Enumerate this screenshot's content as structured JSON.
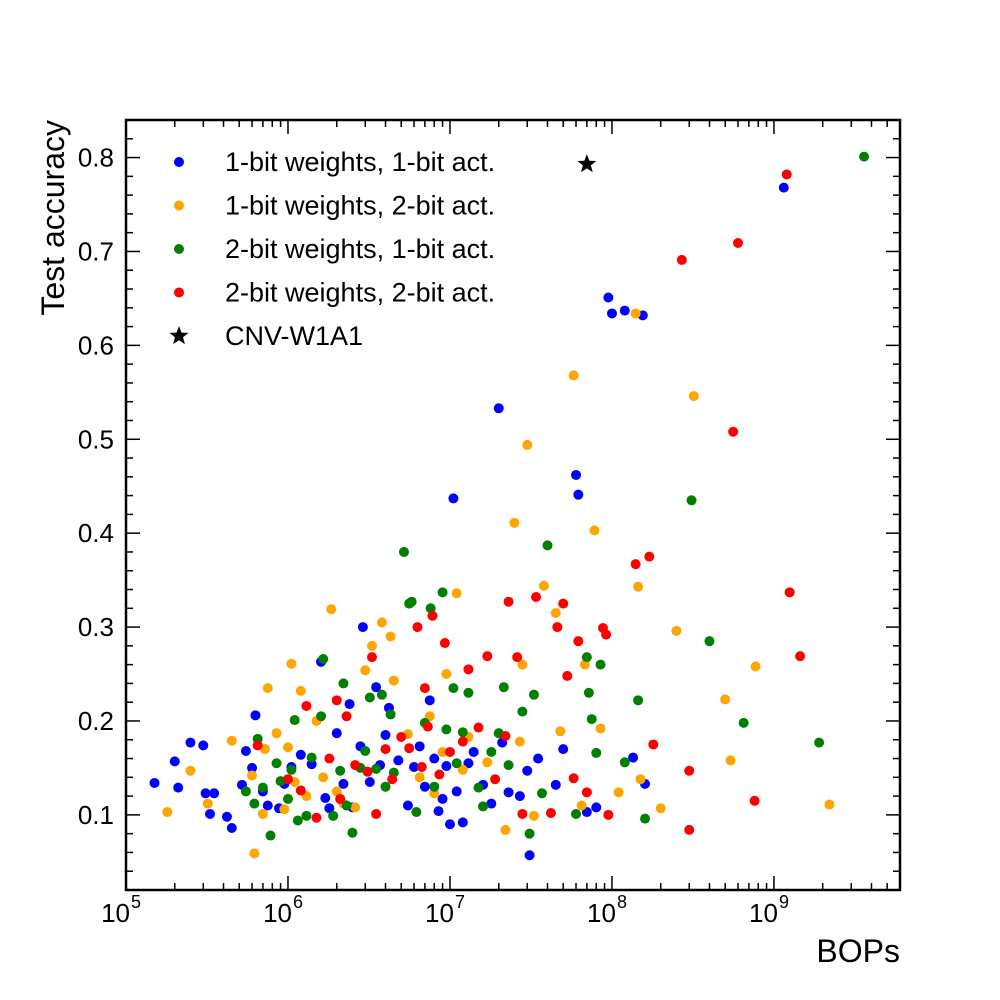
{
  "chart_data": {
    "type": "scatter",
    "title": "",
    "xlabel": "BOPs",
    "ylabel": "Test accuracy",
    "xscale": "log",
    "xlim": [
      100000,
      6000000000
    ],
    "ylim": [
      0.02,
      0.84
    ],
    "x_tick_labels": [
      {
        "value": 100000,
        "base": "10",
        "exp": "5"
      },
      {
        "value": 1000000,
        "base": "10",
        "exp": "6"
      },
      {
        "value": 10000000,
        "base": "10",
        "exp": "7"
      },
      {
        "value": 100000000,
        "base": "10",
        "exp": "8"
      },
      {
        "value": 1000000000,
        "base": "10",
        "exp": "9"
      }
    ],
    "y_tick_labels": [
      "0.1",
      "0.2",
      "0.3",
      "0.4",
      "0.5",
      "0.6",
      "0.7",
      "0.8"
    ],
    "y_tick_values": [
      0.1,
      0.2,
      0.3,
      0.4,
      0.5,
      0.6,
      0.7,
      0.8
    ],
    "grid": false,
    "legend_position": "top-left",
    "series": [
      {
        "name": "1-bit weights, 1-bit act.",
        "color": "#0000ff",
        "marker": "circle",
        "points": [
          [
            150000,
            0.134
          ],
          [
            200000,
            0.157
          ],
          [
            210000,
            0.129
          ],
          [
            250000,
            0.177
          ],
          [
            300000,
            0.174
          ],
          [
            310000,
            0.123
          ],
          [
            330000,
            0.101
          ],
          [
            350000,
            0.123
          ],
          [
            420000,
            0.098
          ],
          [
            450000,
            0.086
          ],
          [
            520000,
            0.132
          ],
          [
            550000,
            0.168
          ],
          [
            600000,
            0.15
          ],
          [
            630000,
            0.206
          ],
          [
            700000,
            0.125
          ],
          [
            750000,
            0.11
          ],
          [
            880000,
            0.107
          ],
          [
            950000,
            0.133
          ],
          [
            1050000,
            0.151
          ],
          [
            1200000,
            0.164
          ],
          [
            1400000,
            0.154
          ],
          [
            1600000,
            0.263
          ],
          [
            1700000,
            0.118
          ],
          [
            1800000,
            0.107
          ],
          [
            2000000,
            0.187
          ],
          [
            2200000,
            0.133
          ],
          [
            2400000,
            0.218
          ],
          [
            2500000,
            0.108
          ],
          [
            2800000,
            0.173
          ],
          [
            2900000,
            0.3
          ],
          [
            3200000,
            0.135
          ],
          [
            3500000,
            0.236
          ],
          [
            3700000,
            0.153
          ],
          [
            4000000,
            0.185
          ],
          [
            4200000,
            0.214
          ],
          [
            4800000,
            0.158
          ],
          [
            5500000,
            0.11
          ],
          [
            6000000,
            0.151
          ],
          [
            6500000,
            0.173
          ],
          [
            7000000,
            0.13
          ],
          [
            7500000,
            0.222
          ],
          [
            8000000,
            0.16
          ],
          [
            8500000,
            0.104
          ],
          [
            9000000,
            0.117
          ],
          [
            9500000,
            0.152
          ],
          [
            10000000,
            0.09
          ],
          [
            10500000,
            0.437
          ],
          [
            11000000,
            0.125
          ],
          [
            12000000,
            0.092
          ],
          [
            13000000,
            0.155
          ],
          [
            14000000,
            0.167
          ],
          [
            16000000,
            0.132
          ],
          [
            18000000,
            0.112
          ],
          [
            20000000,
            0.533
          ],
          [
            21000000,
            0.177
          ],
          [
            23000000,
            0.124
          ],
          [
            27000000,
            0.12
          ],
          [
            30000000,
            0.147
          ],
          [
            31000000,
            0.057
          ],
          [
            35000000,
            0.16
          ],
          [
            45000000,
            0.132
          ],
          [
            50000000,
            0.17
          ],
          [
            60000000,
            0.462
          ],
          [
            62000000,
            0.441
          ],
          [
            70000000,
            0.103
          ],
          [
            80000000,
            0.108
          ],
          [
            95000000,
            0.651
          ],
          [
            100000000,
            0.634
          ],
          [
            120000000,
            0.637
          ],
          [
            135000000,
            0.161
          ],
          [
            155000000,
            0.632
          ],
          [
            160000000,
            0.133
          ],
          [
            1150000000,
            0.768
          ]
        ]
      },
      {
        "name": "1-bit weights, 2-bit act.",
        "color": "#ffa500",
        "marker": "circle",
        "points": [
          [
            180000,
            0.103
          ],
          [
            250000,
            0.147
          ],
          [
            320000,
            0.112
          ],
          [
            450000,
            0.179
          ],
          [
            600000,
            0.142
          ],
          [
            620000,
            0.059
          ],
          [
            700000,
            0.101
          ],
          [
            720000,
            0.17
          ],
          [
            750000,
            0.235
          ],
          [
            850000,
            0.187
          ],
          [
            950000,
            0.106
          ],
          [
            1000000,
            0.172
          ],
          [
            1050000,
            0.261
          ],
          [
            1100000,
            0.135
          ],
          [
            1200000,
            0.232
          ],
          [
            1300000,
            0.12
          ],
          [
            1500000,
            0.2
          ],
          [
            1650000,
            0.14
          ],
          [
            1850000,
            0.319
          ],
          [
            2000000,
            0.125
          ],
          [
            2200000,
            0.112
          ],
          [
            2600000,
            0.108
          ],
          [
            3000000,
            0.254
          ],
          [
            3300000,
            0.28
          ],
          [
            3800000,
            0.305
          ],
          [
            4000000,
            0.13
          ],
          [
            4300000,
            0.29
          ],
          [
            4500000,
            0.243
          ],
          [
            5500000,
            0.186
          ],
          [
            6500000,
            0.14
          ],
          [
            7500000,
            0.205
          ],
          [
            8000000,
            0.123
          ],
          [
            9000000,
            0.167
          ],
          [
            9500000,
            0.25
          ],
          [
            11000000,
            0.336
          ],
          [
            12000000,
            0.148
          ],
          [
            13000000,
            0.183
          ],
          [
            17000000,
            0.156
          ],
          [
            22000000,
            0.084
          ],
          [
            25000000,
            0.411
          ],
          [
            27000000,
            0.178
          ],
          [
            28000000,
            0.26
          ],
          [
            30000000,
            0.494
          ],
          [
            33000000,
            0.099
          ],
          [
            38000000,
            0.344
          ],
          [
            45000000,
            0.315
          ],
          [
            48000000,
            0.189
          ],
          [
            58000000,
            0.568
          ],
          [
            65000000,
            0.11
          ],
          [
            68000000,
            0.26
          ],
          [
            78000000,
            0.403
          ],
          [
            85000000,
            0.192
          ],
          [
            110000000,
            0.124
          ],
          [
            140000000,
            0.634
          ],
          [
            145000000,
            0.343
          ],
          [
            150000000,
            0.138
          ],
          [
            200000000,
            0.107
          ],
          [
            250000000,
            0.296
          ],
          [
            320000000,
            0.546
          ],
          [
            500000000,
            0.223
          ],
          [
            540000000,
            0.158
          ],
          [
            770000000,
            0.258
          ],
          [
            2200000000,
            0.111
          ]
        ]
      },
      {
        "name": "2-bit weights, 1-bit act.",
        "color": "#008000",
        "marker": "circle",
        "points": [
          [
            550000,
            0.125
          ],
          [
            620000,
            0.112
          ],
          [
            650000,
            0.181
          ],
          [
            700000,
            0.129
          ],
          [
            780000,
            0.078
          ],
          [
            850000,
            0.155
          ],
          [
            900000,
            0.136
          ],
          [
            1000000,
            0.117
          ],
          [
            1050000,
            0.148
          ],
          [
            1100000,
            0.201
          ],
          [
            1150000,
            0.094
          ],
          [
            1300000,
            0.099
          ],
          [
            1400000,
            0.161
          ],
          [
            1600000,
            0.205
          ],
          [
            1650000,
            0.266
          ],
          [
            1900000,
            0.099
          ],
          [
            2100000,
            0.147
          ],
          [
            2200000,
            0.24
          ],
          [
            2300000,
            0.11
          ],
          [
            2500000,
            0.081
          ],
          [
            2800000,
            0.15
          ],
          [
            3000000,
            0.168
          ],
          [
            3200000,
            0.225
          ],
          [
            3500000,
            0.149
          ],
          [
            3800000,
            0.228
          ],
          [
            4000000,
            0.13
          ],
          [
            4300000,
            0.207
          ],
          [
            4500000,
            0.145
          ],
          [
            5200000,
            0.38
          ],
          [
            5600000,
            0.325
          ],
          [
            5800000,
            0.327
          ],
          [
            6200000,
            0.103
          ],
          [
            7000000,
            0.198
          ],
          [
            7600000,
            0.32
          ],
          [
            8000000,
            0.13
          ],
          [
            9000000,
            0.337
          ],
          [
            9500000,
            0.191
          ],
          [
            10500000,
            0.235
          ],
          [
            11000000,
            0.155
          ],
          [
            12000000,
            0.188
          ],
          [
            13000000,
            0.23
          ],
          [
            15000000,
            0.129
          ],
          [
            16000000,
            0.109
          ],
          [
            18000000,
            0.167
          ],
          [
            20000000,
            0.187
          ],
          [
            21500000,
            0.236
          ],
          [
            23000000,
            0.153
          ],
          [
            28000000,
            0.21
          ],
          [
            31000000,
            0.08
          ],
          [
            33000000,
            0.228
          ],
          [
            37000000,
            0.123
          ],
          [
            40000000,
            0.387
          ],
          [
            60000000,
            0.101
          ],
          [
            70000000,
            0.268
          ],
          [
            72000000,
            0.23
          ],
          [
            75000000,
            0.202
          ],
          [
            80000000,
            0.166
          ],
          [
            85000000,
            0.26
          ],
          [
            120000000,
            0.156
          ],
          [
            145000000,
            0.222
          ],
          [
            160000000,
            0.096
          ],
          [
            310000000,
            0.435
          ],
          [
            400000000,
            0.285
          ],
          [
            650000000,
            0.198
          ],
          [
            1900000000,
            0.177
          ],
          [
            3600000000,
            0.801
          ]
        ]
      },
      {
        "name": "2-bit weights, 2-bit act.",
        "color": "#ff0000",
        "marker": "circle",
        "points": [
          [
            650000,
            0.174
          ],
          [
            1000000,
            0.138
          ],
          [
            1200000,
            0.126
          ],
          [
            1300000,
            0.216
          ],
          [
            1500000,
            0.097
          ],
          [
            1800000,
            0.16
          ],
          [
            2000000,
            0.222
          ],
          [
            2100000,
            0.117
          ],
          [
            2300000,
            0.205
          ],
          [
            2600000,
            0.153
          ],
          [
            3100000,
            0.146
          ],
          [
            3300000,
            0.268
          ],
          [
            3500000,
            0.101
          ],
          [
            4000000,
            0.17
          ],
          [
            4400000,
            0.138
          ],
          [
            5000000,
            0.183
          ],
          [
            5600000,
            0.171
          ],
          [
            6300000,
            0.3
          ],
          [
            6700000,
            0.151
          ],
          [
            7000000,
            0.235
          ],
          [
            7300000,
            0.194
          ],
          [
            7800000,
            0.312
          ],
          [
            8600000,
            0.143
          ],
          [
            9300000,
            0.283
          ],
          [
            10000000,
            0.167
          ],
          [
            12000000,
            0.178
          ],
          [
            13000000,
            0.255
          ],
          [
            15000000,
            0.193
          ],
          [
            17000000,
            0.269
          ],
          [
            19000000,
            0.138
          ],
          [
            22000000,
            0.184
          ],
          [
            23000000,
            0.327
          ],
          [
            26000000,
            0.268
          ],
          [
            28000000,
            0.101
          ],
          [
            34000000,
            0.332
          ],
          [
            42000000,
            0.102
          ],
          [
            46000000,
            0.3
          ],
          [
            50000000,
            0.325
          ],
          [
            53000000,
            0.248
          ],
          [
            58000000,
            0.139
          ],
          [
            62000000,
            0.285
          ],
          [
            70000000,
            0.124
          ],
          [
            88000000,
            0.299
          ],
          [
            92000000,
            0.292
          ],
          [
            95000000,
            0.1
          ],
          [
            140000000,
            0.367
          ],
          [
            170000000,
            0.375
          ],
          [
            180000000,
            0.175
          ],
          [
            270000000,
            0.691
          ],
          [
            300000000,
            0.084
          ],
          [
            300000000,
            0.147
          ],
          [
            560000000,
            0.508
          ],
          [
            600000000,
            0.709
          ],
          [
            760000000,
            0.115
          ],
          [
            1200000000,
            0.782
          ],
          [
            1250000000,
            0.337
          ],
          [
            1450000000,
            0.269
          ]
        ]
      },
      {
        "name": "CNV-W1A1",
        "color": "#000000",
        "marker": "star",
        "points": [
          [
            70000000,
            0.793
          ]
        ]
      }
    ]
  }
}
